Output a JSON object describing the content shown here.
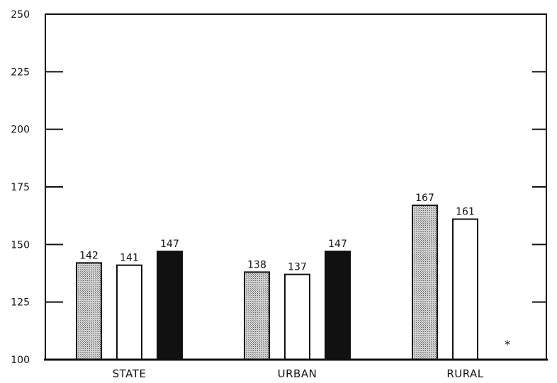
{
  "chart_data": {
    "type": "bar",
    "categories": [
      "STATE",
      "URBAN",
      "RURAL"
    ],
    "series": [
      {
        "values": [
          142,
          138,
          167
        ],
        "color": "#b8b8b8",
        "pattern": "stipple"
      },
      {
        "values": [
          141,
          137,
          161
        ],
        "color": "#ffffff",
        "pattern": "open"
      },
      {
        "values": [
          147,
          147,
          null
        ],
        "color": "#111111",
        "pattern": "solid"
      }
    ],
    "value_labels": [
      [
        "142",
        "138",
        "167"
      ],
      [
        "141",
        "137",
        "161"
      ],
      [
        "147",
        "147",
        ""
      ]
    ],
    "missing_marker": "*",
    "yticks": [
      "100",
      "125",
      "150",
      "175",
      "200",
      "225",
      "250"
    ],
    "ylim": [
      100,
      250
    ],
    "title": "",
    "xlabel": "",
    "ylabel": "",
    "grid": false,
    "legend": "none"
  }
}
